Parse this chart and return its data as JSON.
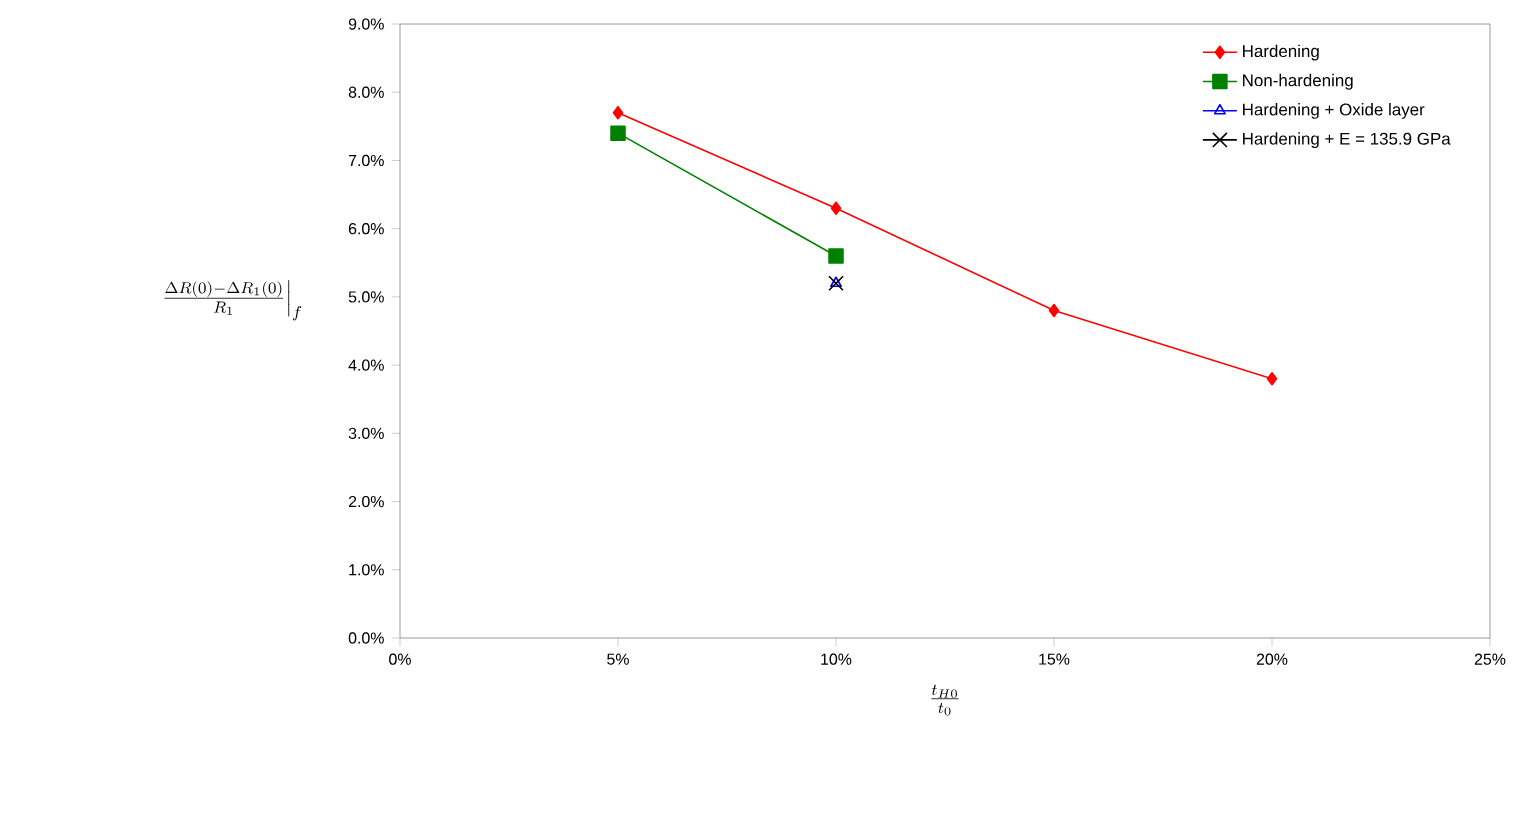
{
  "chart_data": {
    "type": "line",
    "xlabel": "\\frac{t_{H0}}{t_0}",
    "ylabel": "\\left.\\frac{\\Delta R(0)-\\Delta R_1(0)}{R_1}\\right|_f",
    "xlim": [
      0,
      25
    ],
    "xticks": [
      {
        "value": 0,
        "label": "0%"
      },
      {
        "value": 5,
        "label": "5%"
      },
      {
        "value": 10,
        "label": "10%"
      },
      {
        "value": 15,
        "label": "15%"
      },
      {
        "value": 20,
        "label": "20%"
      },
      {
        "value": 25,
        "label": "25%"
      }
    ],
    "ylim": [
      0,
      9
    ],
    "yticks": [
      {
        "value": 0,
        "label": "0.0%"
      },
      {
        "value": 1,
        "label": "1.0%"
      },
      {
        "value": 2,
        "label": "2.0%"
      },
      {
        "value": 3,
        "label": "3.0%"
      },
      {
        "value": 4,
        "label": "4.0%"
      },
      {
        "value": 5,
        "label": "5.0%"
      },
      {
        "value": 6,
        "label": "6.0%"
      },
      {
        "value": 7,
        "label": "7.0%"
      },
      {
        "value": 8,
        "label": "8.0%"
      },
      {
        "value": 9,
        "label": "9.0%"
      }
    ],
    "legend": "top right",
    "grid": false,
    "series": [
      {
        "name": "Hardening",
        "color": "#ff0000",
        "marker": "diamond",
        "x": [
          5,
          10,
          15,
          20
        ],
        "values": [
          7.7,
          6.3,
          4.8,
          3.8
        ]
      },
      {
        "name": "Non-hardening",
        "color": "#008000",
        "marker": "square",
        "x": [
          5,
          10
        ],
        "values": [
          7.4,
          5.6
        ]
      },
      {
        "name": "Hardening + Oxide layer",
        "color": "#0000ff",
        "marker": "triangle",
        "x": [
          10
        ],
        "values": [
          5.2
        ]
      },
      {
        "name": "Hardening + E = 135.9 GPa",
        "color": "#000000",
        "marker": "cross",
        "x": [
          10
        ],
        "values": [
          5.2
        ]
      }
    ]
  }
}
